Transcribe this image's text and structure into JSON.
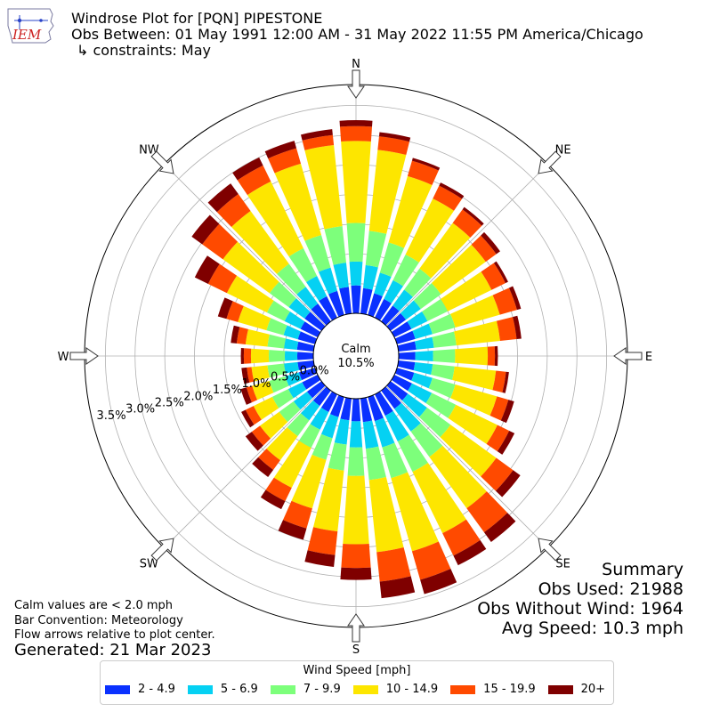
{
  "header": {
    "title": "Windrose Plot for [PQN] PIPESTONE",
    "obs_between": "Obs Between: 01 May 1991 12:00 AM - 31 May 2022 11:55 PM America/Chicago",
    "constraints": "↳ constraints: May"
  },
  "logo": {
    "text": "IEM",
    "color": "#cc2222"
  },
  "notes": {
    "calm_def": "Calm values are < 2.0 mph",
    "bar_convention": "Bar Convention: Meteorology",
    "flow_arrows": "Flow arrows relative to plot center.",
    "generated": "Generated: 21 Mar 2023"
  },
  "summary": {
    "title": "Summary",
    "obs_used": "Obs Used: 21988",
    "obs_without_wind": "Obs Without Wind: 1964",
    "avg_speed": "Avg Speed: 10.3 mph"
  },
  "chart_data": {
    "type": "windrose",
    "calm_label": "Calm",
    "calm_value": "10.5%",
    "compass": [
      "N",
      "NE",
      "E",
      "SE",
      "S",
      "SW",
      "W",
      "NW"
    ],
    "radial_ticks": [
      0.0,
      0.5,
      1.0,
      1.5,
      2.0,
      2.5,
      3.0,
      3.5
    ],
    "radial_tick_labels": [
      "0.0%",
      "0.5%",
      "1.0%",
      "1.5%",
      "2.0%",
      "2.5%",
      "3.0%",
      "3.5%"
    ],
    "rmax": 3.85,
    "legend_title": "Wind Speed [mph]",
    "bins": [
      "2 - 4.9",
      "5 - 6.9",
      "7 - 9.9",
      "10 - 14.9",
      "15 - 19.9",
      "20+"
    ],
    "colors": [
      "#0a31ff",
      "#05d1f3",
      "#7dff7b",
      "#fde600",
      "#ff4a00",
      "#7f0000"
    ],
    "directions_deg": [
      0,
      10,
      20,
      30,
      40,
      50,
      60,
      70,
      80,
      90,
      100,
      110,
      120,
      130,
      140,
      150,
      160,
      170,
      180,
      190,
      200,
      210,
      220,
      230,
      240,
      250,
      260,
      270,
      280,
      290,
      300,
      310,
      320,
      330,
      340,
      350
    ],
    "cumulative_percent": [
      [
        0.47,
        0.87,
        1.52,
        2.9,
        3.15,
        3.25
      ],
      [
        0.43,
        0.82,
        1.4,
        2.77,
        3.0,
        3.07
      ],
      [
        0.38,
        0.74,
        1.27,
        2.43,
        2.7,
        2.75
      ],
      [
        0.35,
        0.7,
        1.18,
        2.23,
        2.47,
        2.53
      ],
      [
        0.33,
        0.66,
        1.1,
        2.05,
        2.33,
        2.38
      ],
      [
        0.32,
        0.63,
        1.05,
        1.98,
        2.2,
        2.28
      ],
      [
        0.32,
        0.62,
        1.0,
        1.82,
        2.08,
        2.13
      ],
      [
        0.32,
        0.62,
        1.02,
        1.8,
        2.1,
        2.17
      ],
      [
        0.3,
        0.6,
        0.98,
        1.72,
        2.0,
        2.08
      ],
      [
        0.28,
        0.58,
        0.95,
        1.5,
        1.62,
        1.67
      ],
      [
        0.28,
        0.58,
        0.95,
        1.65,
        1.82,
        1.87
      ],
      [
        0.3,
        0.62,
        1.02,
        1.75,
        1.95,
        2.05
      ],
      [
        0.33,
        0.7,
        1.15,
        1.93,
        2.15,
        2.25
      ],
      [
        0.36,
        0.76,
        1.25,
        2.2,
        2.55,
        2.7
      ],
      [
        0.38,
        0.85,
        1.38,
        2.45,
        2.95,
        3.15
      ],
      [
        0.4,
        0.88,
        1.45,
        2.6,
        3.02,
        3.2
      ],
      [
        0.42,
        0.88,
        1.42,
        2.7,
        3.2,
        3.45
      ],
      [
        0.4,
        0.85,
        1.38,
        2.6,
        3.1,
        3.38
      ],
      [
        0.38,
        0.82,
        1.3,
        2.45,
        2.85,
        3.05
      ],
      [
        0.37,
        0.78,
        1.22,
        2.25,
        2.65,
        2.85
      ],
      [
        0.35,
        0.72,
        1.1,
        1.95,
        2.3,
        2.5
      ],
      [
        0.33,
        0.66,
        1.0,
        1.75,
        2.0,
        2.15
      ],
      [
        0.32,
        0.62,
        0.95,
        1.45,
        1.65,
        1.8
      ],
      [
        0.3,
        0.58,
        0.88,
        1.28,
        1.45,
        1.58
      ],
      [
        0.29,
        0.55,
        0.85,
        1.2,
        1.35,
        1.43
      ],
      [
        0.28,
        0.52,
        0.8,
        1.1,
        1.2,
        1.3
      ],
      [
        0.27,
        0.5,
        0.78,
        1.05,
        1.13,
        1.22
      ],
      [
        0.27,
        0.48,
        0.75,
        1.05,
        1.17,
        1.22
      ],
      [
        0.28,
        0.5,
        0.78,
        1.15,
        1.3,
        1.4
      ],
      [
        0.3,
        0.55,
        0.85,
        1.35,
        1.55,
        1.7
      ],
      [
        0.32,
        0.62,
        0.95,
        1.7,
        2.05,
        2.3
      ],
      [
        0.35,
        0.68,
        1.08,
        2.05,
        2.48,
        2.7
      ],
      [
        0.37,
        0.72,
        1.2,
        2.3,
        2.65,
        2.87
      ],
      [
        0.4,
        0.78,
        1.3,
        2.55,
        2.85,
        3.0
      ],
      [
        0.42,
        0.83,
        1.4,
        2.65,
        2.92,
        3.05
      ],
      [
        0.45,
        0.86,
        1.48,
        2.85,
        3.02,
        3.12
      ]
    ]
  }
}
